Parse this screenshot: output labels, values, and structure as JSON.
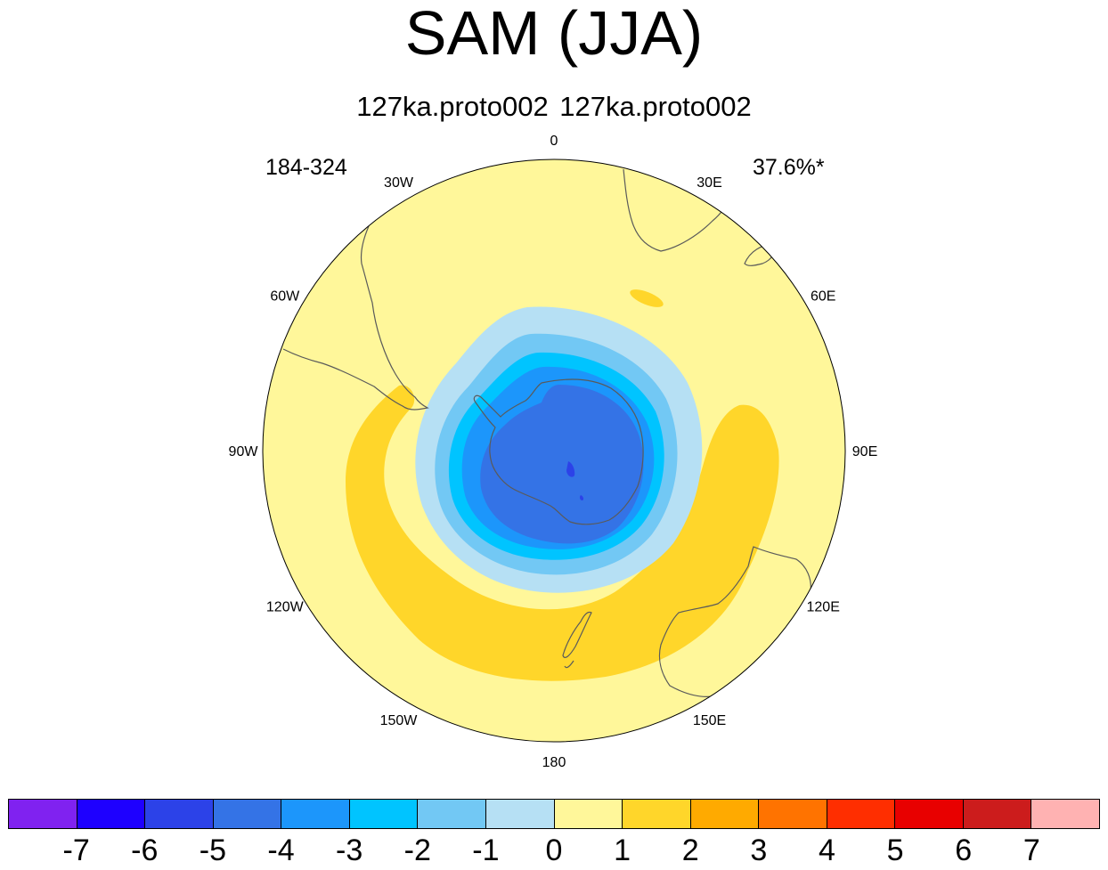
{
  "title": "SAM (JJA)",
  "subtitle": "127ka.proto002  127ka.proto002",
  "years": "184-324",
  "variance": "37.6%*",
  "lon_labels": [
    {
      "text": "0",
      "lon": 0
    },
    {
      "text": "30E",
      "lon": 30
    },
    {
      "text": "60E",
      "lon": 60
    },
    {
      "text": "90E",
      "lon": 90
    },
    {
      "text": "120E",
      "lon": 120
    },
    {
      "text": "150E",
      "lon": 150
    },
    {
      "text": "180",
      "lon": 180
    },
    {
      "text": "150W",
      "lon": -150
    },
    {
      "text": "120W",
      "lon": -120
    },
    {
      "text": "90W",
      "lon": -90
    },
    {
      "text": "60W",
      "lon": -60
    },
    {
      "text": "30W",
      "lon": -30
    }
  ],
  "colorbar": {
    "colors": [
      "#8022f0",
      "#1e00ff",
      "#2c42e8",
      "#3473e6",
      "#1c96fb",
      "#00c4ff",
      "#72c8f4",
      "#b6e0f4",
      "#fff79a",
      "#ffd62a",
      "#ffaa00",
      "#ff7300",
      "#ff2e00",
      "#e80000",
      "#cc1c1c",
      "#ffb2b2"
    ],
    "labels": [
      "-7",
      "-6",
      "-5",
      "-4",
      "-3",
      "-2",
      "-1",
      "0",
      "1",
      "2",
      "3",
      "4",
      "5",
      "6",
      "7"
    ]
  }
}
